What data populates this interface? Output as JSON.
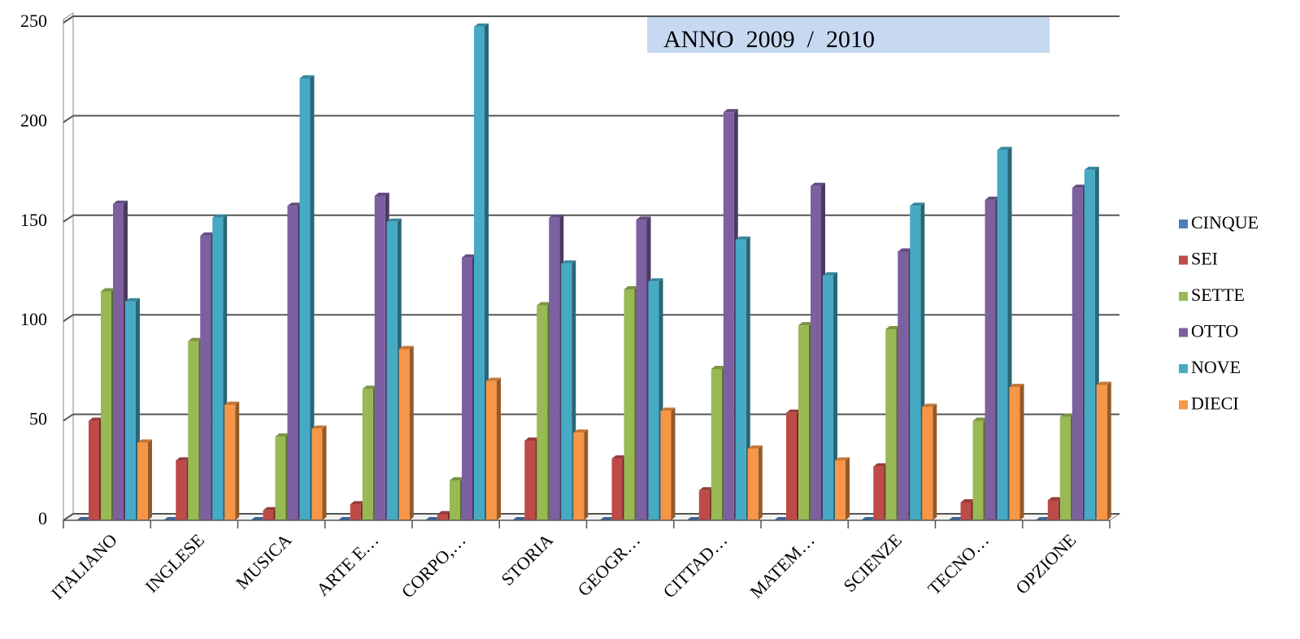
{
  "chart_data": {
    "type": "bar3d",
    "title": "ANNO  2009  /  2010",
    "categories": [
      "ITALIANO",
      "INGLESE",
      "MUSICA",
      "ARTE E…",
      "CORPO,…",
      "STORIA",
      "GEOGR…",
      "CITTAD…",
      "MATEM…",
      "SCIENZE",
      "TECNO…",
      "OPZIONE"
    ],
    "series": [
      {
        "name": "CINQUE",
        "color": "#4a7ebb",
        "values": [
          0,
          0,
          0,
          0,
          0,
          0,
          0,
          0,
          0,
          0,
          0,
          0
        ]
      },
      {
        "name": "SEI",
        "color": "#be4b48",
        "values": [
          50,
          30,
          5,
          8,
          3,
          40,
          31,
          15,
          54,
          27,
          9,
          10
        ]
      },
      {
        "name": "SETTE",
        "color": "#98b954",
        "values": [
          115,
          90,
          42,
          66,
          20,
          108,
          116,
          76,
          98,
          96,
          50,
          52
        ]
      },
      {
        "name": "OTTO",
        "color": "#7d60a0",
        "values": [
          159,
          143,
          158,
          163,
          132,
          152,
          151,
          205,
          168,
          135,
          161,
          167
        ]
      },
      {
        "name": "NOVE",
        "color": "#46aac5",
        "values": [
          110,
          152,
          222,
          150,
          248,
          129,
          120,
          141,
          123,
          158,
          186,
          176
        ]
      },
      {
        "name": "DIECI",
        "color": "#f79646",
        "values": [
          39,
          58,
          46,
          86,
          70,
          44,
          55,
          36,
          30,
          57,
          67,
          68
        ]
      }
    ],
    "ylim": [
      0,
      250
    ],
    "yticks": [
      0,
      50,
      100,
      150,
      200,
      250
    ],
    "grid": true,
    "legend": "right"
  }
}
